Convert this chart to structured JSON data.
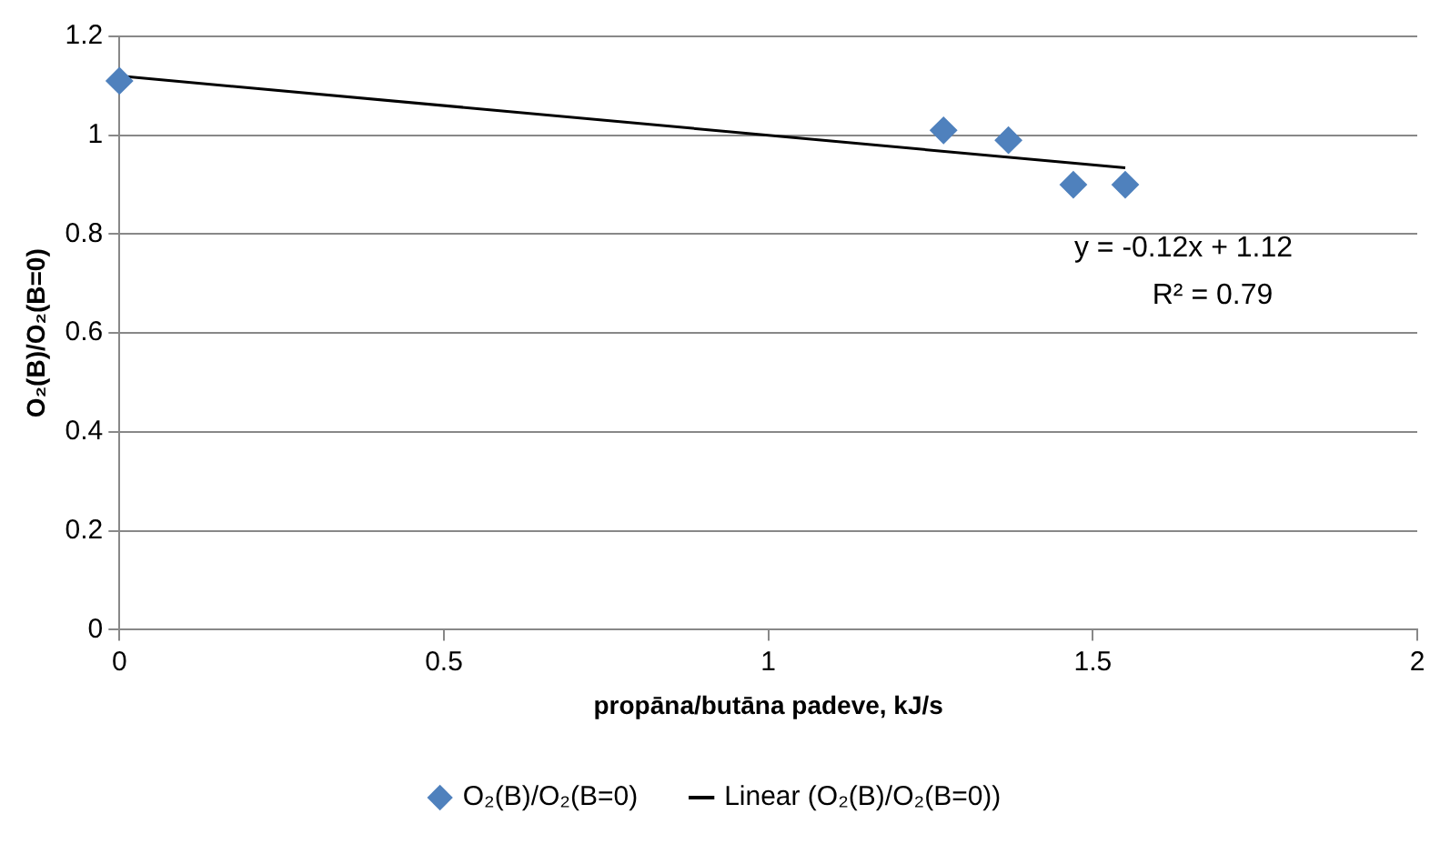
{
  "chart_data": {
    "type": "scatter",
    "xlabel": "propāna/butāna padeve, kJ/s",
    "ylabel": "O₂(B)/O₂(B=0)",
    "xlim": [
      0,
      2
    ],
    "xticks": [
      0,
      0.5,
      1,
      1.5,
      2
    ],
    "ylim": [
      0,
      1.2
    ],
    "yticks": [
      0,
      0.2,
      0.4,
      0.6,
      0.8,
      1,
      1.2
    ],
    "series": [
      {
        "name": "O₂(B)/O₂(B=0)",
        "color": "#4f81bd",
        "marker": "diamond",
        "x": [
          0,
          1.27,
          1.37,
          1.47,
          1.55
        ],
        "values": [
          1.11,
          1.01,
          0.99,
          0.9,
          0.9
        ]
      },
      {
        "name": "Linear (O₂(B)/O₂(B=0))",
        "type": "line",
        "color": "#000000",
        "marker": "none",
        "x": [
          0,
          1.55
        ],
        "values": [
          1.12,
          0.934
        ]
      }
    ],
    "annotations": [
      "y = -0.12x + 1.12",
      "R² = 0.79"
    ],
    "grid": "y",
    "legend": "bottom"
  }
}
